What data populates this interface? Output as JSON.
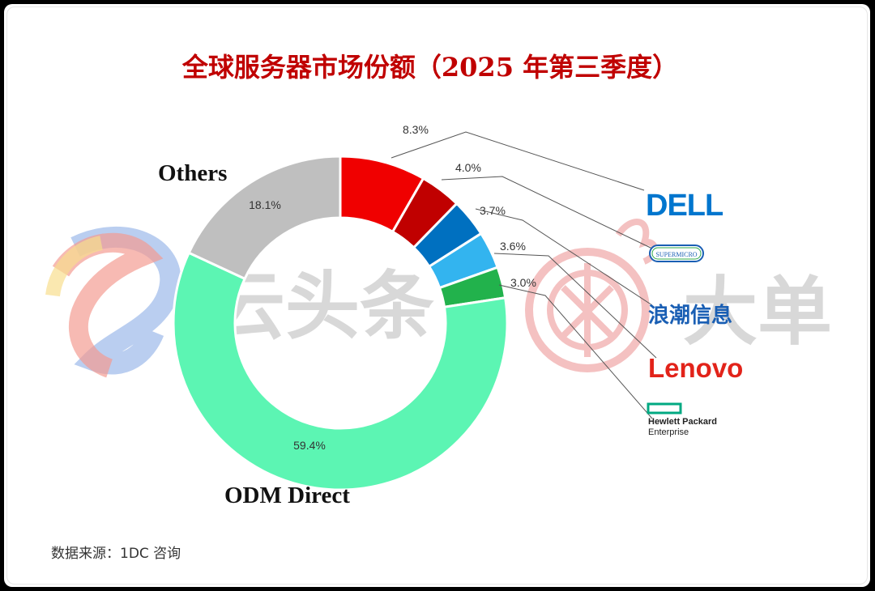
{
  "title": "全球服务器市场份额（2025 年第三季度）",
  "source": "数据来源：1DC 咨询",
  "watermark": {
    "left": "云头条",
    "right": "大单"
  },
  "chart_data": {
    "type": "pie",
    "title": "全球服务器市场份额（2025 年第三季度）",
    "slices": [
      {
        "name": "Dell",
        "value": 8.3,
        "label": "8.3%",
        "color": "#f00000"
      },
      {
        "name": "Supermicro",
        "value": 4.0,
        "label": "4.0%",
        "color": "#c00000"
      },
      {
        "name": "浪潮信息",
        "value": 3.7,
        "label": "3.7%",
        "color": "#0070c0"
      },
      {
        "name": "Lenovo",
        "value": 3.6,
        "label": "3.6%",
        "color": "#33b4ef"
      },
      {
        "name": "Hewlett Packard Enterprise",
        "value": 3.0,
        "label": "3.0%",
        "color": "#22b24c"
      },
      {
        "name": "ODM Direct",
        "value": 59.4,
        "label": "59.4%",
        "color": "#5cf5b3"
      },
      {
        "name": "Others",
        "value": 18.1,
        "label": "18.1%",
        "color": "#bfbfbf"
      }
    ],
    "category_labels": {
      "others": "Others",
      "odm": "ODM Direct"
    },
    "legend": "logos on right"
  },
  "logos": {
    "dell": {
      "text": "DELL",
      "color": "#0076ce"
    },
    "supermicro": {
      "text": "SUPERMICRO",
      "color": "#1a5fb4"
    },
    "inspur": {
      "text": "浪潮信息",
      "color": "#1a5fb4"
    },
    "lenovo": {
      "text": "Lenovo",
      "color": "#e2231a"
    },
    "hpe": {
      "line1": "Hewlett Packard",
      "line2": "Enterprise",
      "color": "#01a982"
    }
  }
}
